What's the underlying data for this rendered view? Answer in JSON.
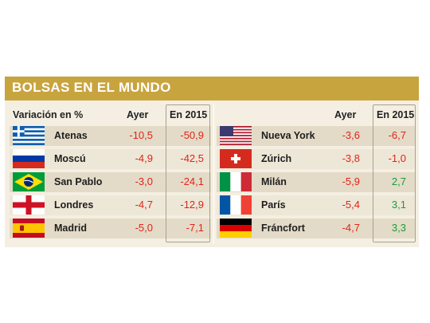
{
  "title": "BOLSAS EN EL MUNDO",
  "headers": {
    "variation": "Variación en %",
    "yesterday_left": "Ayer",
    "year_left": "En 2015",
    "yesterday_right": "Ayer",
    "year_right": "En 2015"
  },
  "left": [
    {
      "name": "Atenas",
      "flag": "greece-flag",
      "yesterday": "-10,5",
      "year": "-50,9"
    },
    {
      "name": "Moscú",
      "flag": "russia-flag",
      "yesterday": "-4,9",
      "year": "-42,5"
    },
    {
      "name": "San Pablo",
      "flag": "brazil-flag",
      "yesterday": "-3,0",
      "year": "-24,1"
    },
    {
      "name": "Londres",
      "flag": "england-flag",
      "yesterday": "-4,7",
      "year": "-12,9"
    },
    {
      "name": "Madrid",
      "flag": "spain-flag",
      "yesterday": "-5,0",
      "year": "-7,1"
    }
  ],
  "right": [
    {
      "name": "Nueva York",
      "flag": "usa-flag",
      "yesterday": "-3,6",
      "year": "-6,7"
    },
    {
      "name": "Zúrich",
      "flag": "switzerland-flag",
      "yesterday": "-3,8",
      "year": "-1,0"
    },
    {
      "name": "Milán",
      "flag": "italy-flag",
      "yesterday": "-5,9",
      "year": "2,7"
    },
    {
      "name": "París",
      "flag": "france-flag",
      "yesterday": "-5,4",
      "year": "3,1"
    },
    {
      "name": "Fráncfort",
      "flag": "germany-flag",
      "yesterday": "-4,7",
      "year": "3,3"
    }
  ],
  "colors": {
    "banner": "#c8a43e",
    "negative": "#e2231a",
    "positive": "#1a9b3b"
  }
}
